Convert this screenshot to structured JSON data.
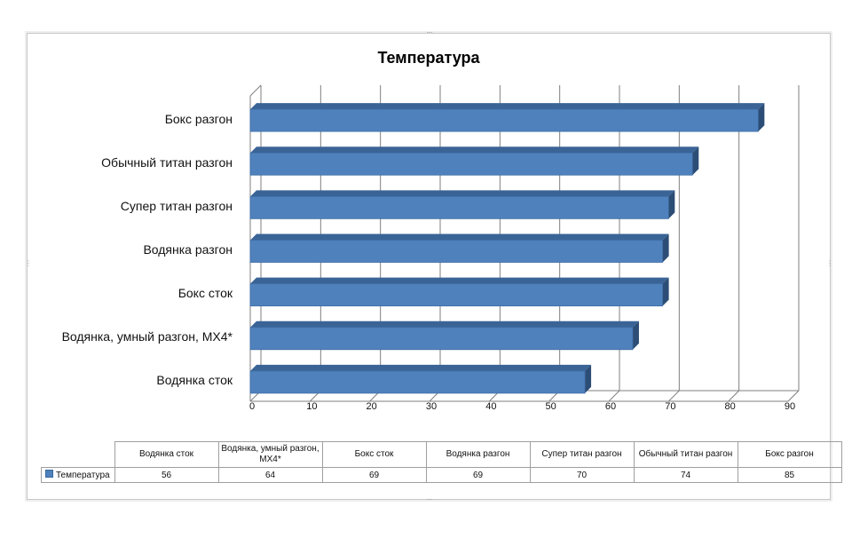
{
  "chart_data": {
    "type": "bar",
    "orientation": "horizontal",
    "style": "3d",
    "title": "Температура",
    "categories": [
      "Водянка сток",
      "Водянка, умный разгон, MX4*",
      "Бокс сток",
      "Водянка разгон",
      "Супер титан разгон",
      "Обычный титан разгон",
      "Бокс разгон"
    ],
    "table_headers": [
      "Водянка сток",
      "Водянка, умный разгон, MX4*",
      "Бокс сток",
      "Водянка разгон",
      "Супер титан разгон",
      "Обычный титан разгон",
      "Бокс разгон"
    ],
    "series": [
      {
        "name": "Температура",
        "values": [
          56,
          64,
          69,
          69,
          70,
          74,
          85
        ]
      }
    ],
    "xlim": [
      0,
      90
    ],
    "xticks": [
      0,
      10,
      20,
      30,
      40,
      50,
      60,
      70,
      80,
      90
    ],
    "grid": true,
    "legend": "data-table",
    "colors": {
      "bar_front": "#4f81bd",
      "bar_top": "#3a6496",
      "bar_side": "#2c4d75",
      "grid": "#7f7f7f"
    }
  }
}
